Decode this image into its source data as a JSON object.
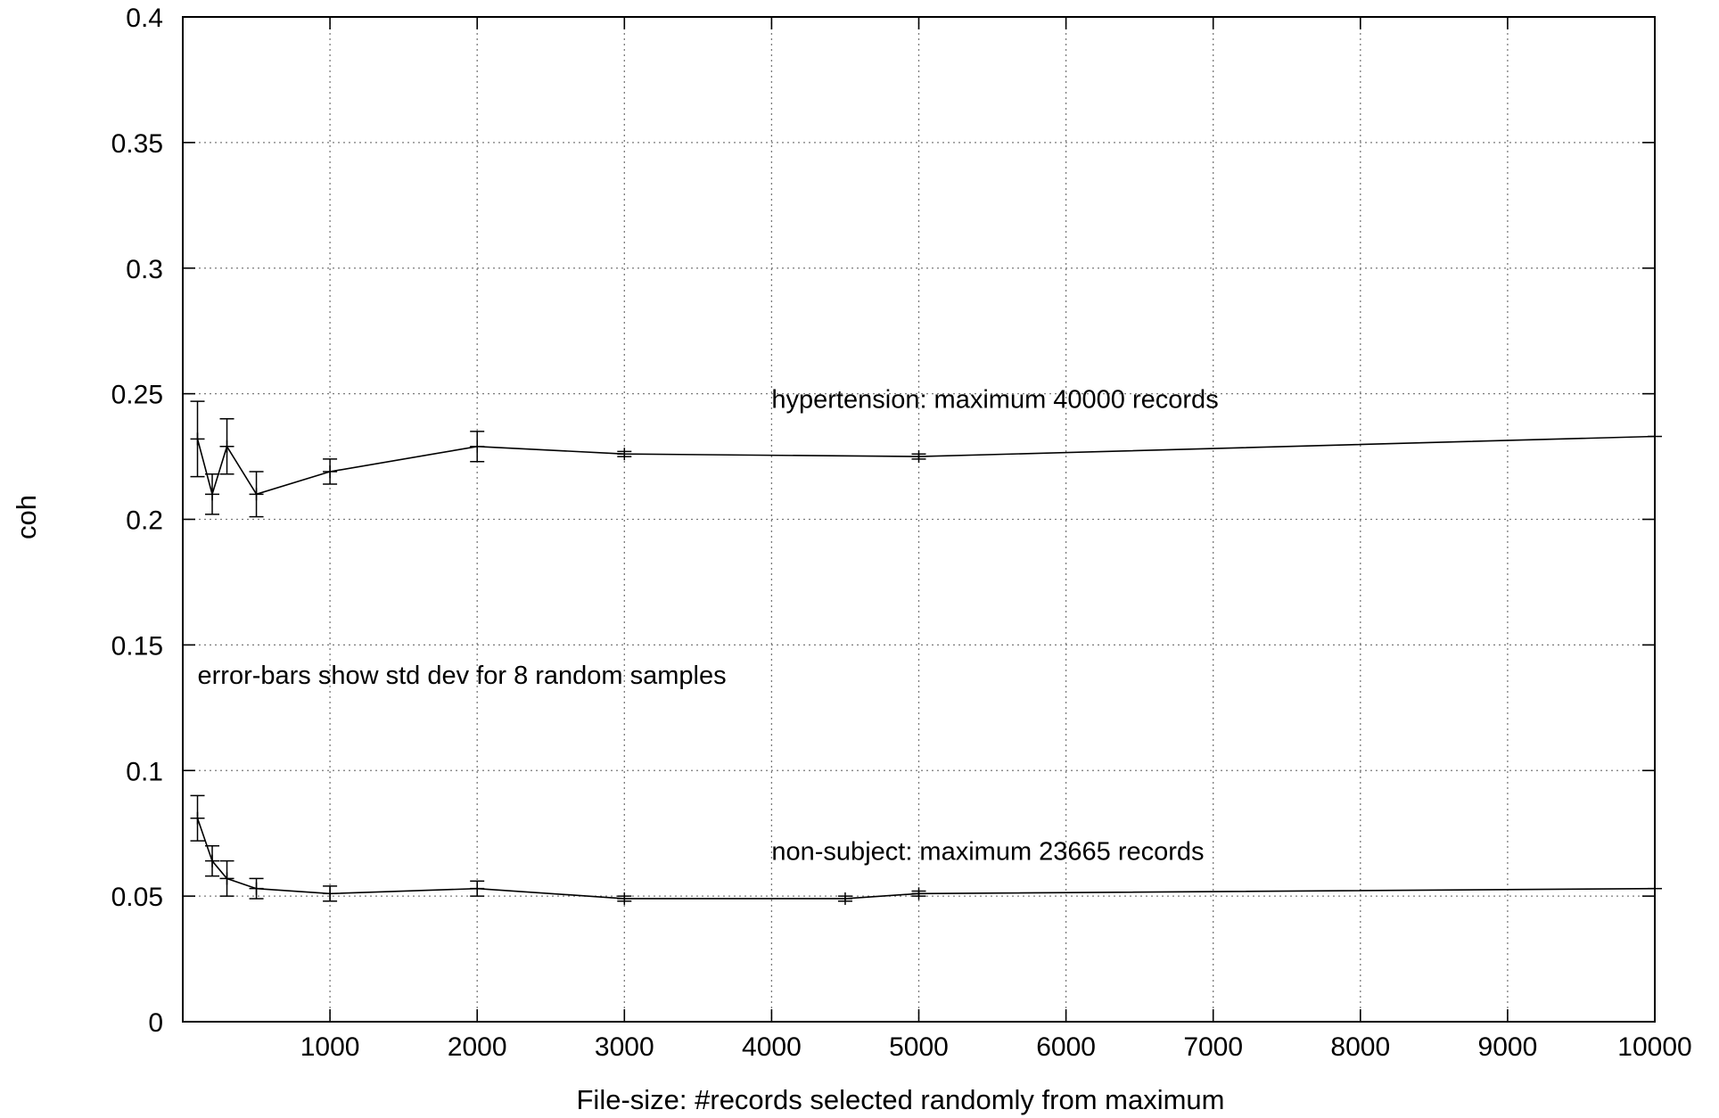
{
  "chart_data": {
    "type": "line",
    "title": "",
    "xlabel": "File-size: #records selected randomly from maximum",
    "ylabel": "coh",
    "xlim": [
      0,
      10000
    ],
    "ylim": [
      0,
      0.4
    ],
    "xticks": [
      1000,
      2000,
      3000,
      4000,
      5000,
      6000,
      7000,
      8000,
      9000,
      10000
    ],
    "yticks": [
      0,
      0.05,
      0.1,
      0.15,
      0.2,
      0.25,
      0.3,
      0.35,
      0.4
    ],
    "xtick_labels": [
      "1000",
      "2000",
      "3000",
      "4000",
      "5000",
      "6000",
      "7000",
      "8000",
      "9000",
      "10000"
    ],
    "ytick_labels": [
      "0",
      "0.05",
      "0.1",
      "0.15",
      "0.2",
      "0.25",
      "0.3",
      "0.35",
      "0.4"
    ],
    "grid": true,
    "series": [
      {
        "x": [
          100,
          200,
          300,
          500,
          1000,
          2000,
          3000,
          5000,
          10000
        ],
        "y": [
          0.232,
          0.21,
          0.229,
          0.21,
          0.219,
          0.229,
          0.226,
          0.225,
          0.233
        ],
        "err": [
          0.015,
          0.008,
          0.011,
          0.009,
          0.005,
          0.006,
          0.001,
          0.001,
          0
        ]
      },
      {
        "x": [
          100,
          200,
          300,
          500,
          1000,
          2000,
          3000,
          4500,
          5000,
          10000
        ],
        "y": [
          0.081,
          0.064,
          0.057,
          0.053,
          0.051,
          0.053,
          0.049,
          0.049,
          0.051,
          0.053
        ],
        "err": [
          0.009,
          0.006,
          0.007,
          0.004,
          0.003,
          0.003,
          0.001,
          0.001,
          0.001,
          0
        ]
      }
    ],
    "annotations": [
      {
        "text": "hypertension: maximum 40000 records",
        "x": 4000,
        "y": 0.248
      },
      {
        "text": "error-bars show std dev for 8 random samples",
        "x": 100,
        "y": 0.138
      },
      {
        "text": "non-subject: maximum 23665 records",
        "x": 4000,
        "y": 0.068
      }
    ]
  }
}
